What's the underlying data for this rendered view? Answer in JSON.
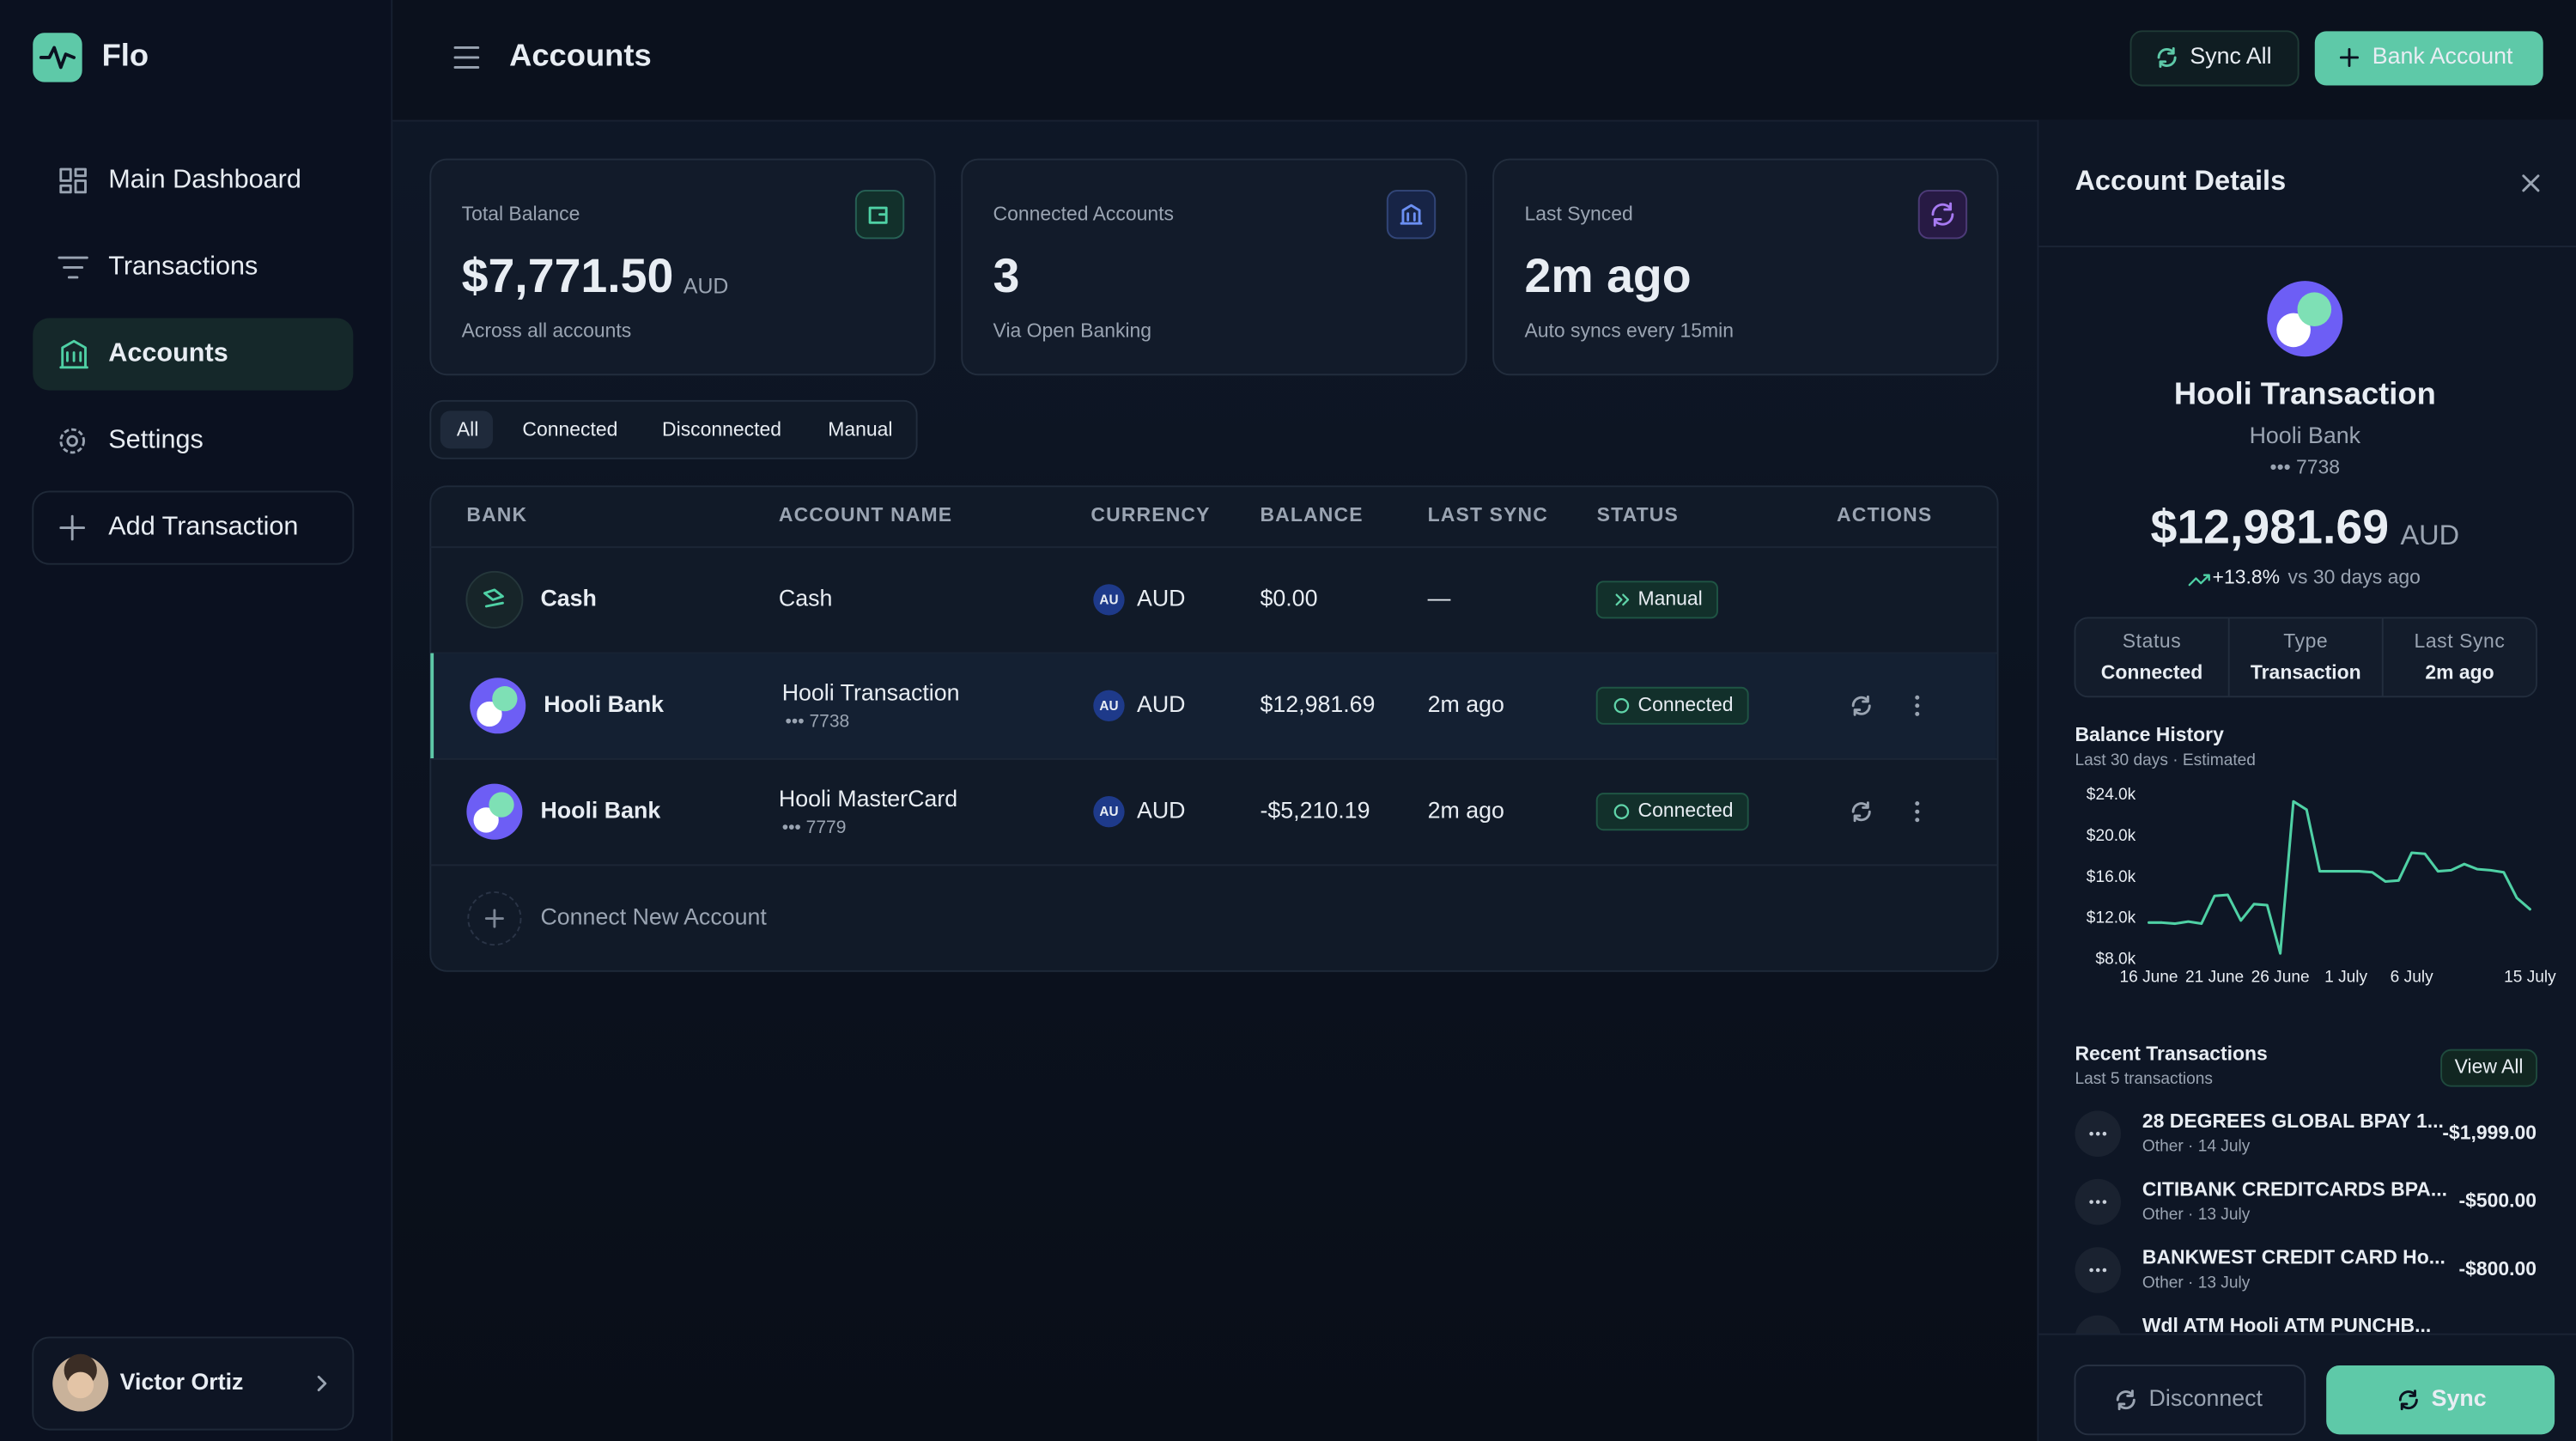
{
  "sidebar": {
    "brand": "Flo",
    "nav": [
      "Main Dashboard",
      "Transactions",
      "Accounts",
      "Settings",
      "Add Transaction"
    ],
    "user": "Victor Ortiz"
  },
  "header": {
    "title": "Accounts",
    "buttons": [
      "Sync All",
      "Bank Account"
    ]
  },
  "cards": [
    {
      "label": "Total Balance",
      "value": "$7,771.50",
      "unit": "AUD",
      "note": "Across all accounts"
    },
    {
      "label": "Connected Accounts",
      "value": "3",
      "note": "Via Open Banking"
    },
    {
      "label": "Last Synced",
      "value": "2m ago",
      "note": "Auto syncs every 15min"
    }
  ],
  "tabs": [
    "All",
    "Connected",
    "Disconnected",
    "Manual"
  ],
  "table": {
    "columns": [
      "BANK",
      "ACCOUNT NAME",
      "CURRENCY",
      "BALANCE",
      "LAST SYNC",
      "STATUS",
      "ACTIONS"
    ],
    "rows": [
      {
        "bank": "Cash",
        "account": "Cash",
        "flag": "AU",
        "currency": "AUD",
        "balance": "$0.00",
        "last_sync": "—",
        "status": "Manual"
      },
      {
        "bank": "Hooli Bank",
        "account": "Hooli Transaction",
        "number": "••• 7738",
        "flag": "AU",
        "currency": "AUD",
        "balance": "$12,981.69",
        "last_sync": "2m ago",
        "status": "Connected"
      },
      {
        "bank": "Hooli Bank",
        "account": "Hooli MasterCard",
        "number": "••• 7779",
        "flag": "AU",
        "currency": "AUD",
        "balance": "-$5,210.19",
        "last_sync": "2m ago",
        "status": "Connected"
      }
    ],
    "connect": "Connect New Account"
  },
  "details": {
    "title": "Account Details",
    "name": "Hooli Transaction",
    "bank": "Hooli Bank",
    "number": "••• 7738",
    "balance": "$12,981.69",
    "currency": "AUD",
    "change": "+13.8%",
    "change_note": "vs 30 days ago",
    "stats": [
      {
        "label": "Status",
        "value": "Connected"
      },
      {
        "label": "Type",
        "value": "Transaction"
      },
      {
        "label": "Last Sync",
        "value": "2m ago"
      }
    ],
    "history_title": "Balance History",
    "history_note": "Last 30 days · Estimated",
    "recent_title": "Recent Transactions",
    "recent_note": "Last 5 transactions",
    "view_all": "View All",
    "transactions": [
      {
        "name": "28 DEGREES GLOBAL BPAY 1...",
        "meta": "Other · 14 July",
        "amount": "-$1,999.00"
      },
      {
        "name": "CITIBANK CREDITCARDS BPA...",
        "meta": "Other · 13 July",
        "amount": "-$500.00"
      },
      {
        "name": "BANKWEST CREDIT CARD Ho...",
        "meta": "Other · 13 July",
        "amount": "-$800.00"
      },
      {
        "name": "Wdl ATM Hooli ATM PUNCHB..."
      }
    ],
    "buttons": [
      "Disconnect",
      "Sync"
    ]
  },
  "chart_data": {
    "type": "line",
    "categories": [
      "16 June",
      null,
      null,
      null,
      null,
      "21 June",
      null,
      null,
      null,
      null,
      "26 June",
      null,
      null,
      null,
      null,
      "1 July",
      null,
      null,
      null,
      null,
      "6 July",
      null,
      null,
      null,
      null,
      null,
      null,
      null,
      null,
      "15 July"
    ],
    "values": [
      11600,
      11600,
      11500,
      11700,
      11500,
      14200,
      14300,
      11800,
      13400,
      13300,
      8600,
      23400,
      22600,
      16600,
      16600,
      16600,
      16600,
      16500,
      15600,
      15700,
      18400,
      18300,
      16600,
      16700,
      17300,
      16800,
      16700,
      16500,
      14000,
      12900
    ],
    "color": "#4fd1a5",
    "ylim": [
      8000,
      24000
    ],
    "yticks": [
      {
        "value": 8000,
        "label": "$8.0k"
      },
      {
        "value": 12000,
        "label": "$12.0k"
      },
      {
        "value": 16000,
        "label": "$16.0k"
      },
      {
        "value": 20000,
        "label": "$20.0k"
      },
      {
        "value": 24000,
        "label": "$24.0k"
      }
    ],
    "grid": false
  }
}
